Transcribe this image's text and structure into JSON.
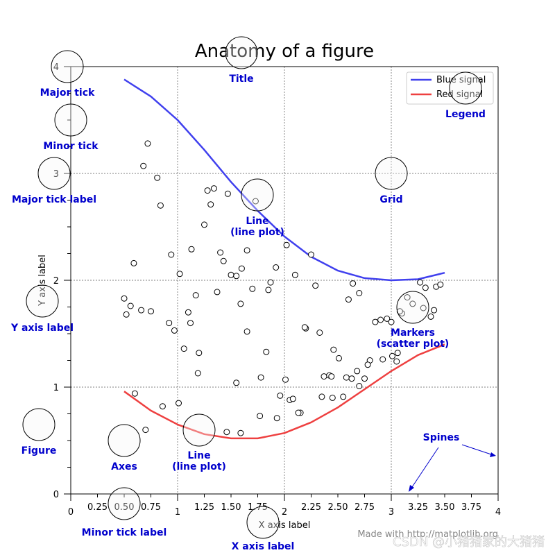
{
  "chart_data": {
    "type": "line",
    "title": "Anatomy of a figure",
    "xlabel": "X axis label",
    "ylabel": "Y axis label",
    "xlim": [
      0,
      4
    ],
    "ylim": [
      0,
      4
    ],
    "grid": true,
    "legend_placement": "upper-right",
    "x_major_ticks": [
      0,
      1,
      2,
      3,
      4
    ],
    "x_major_tick_labels": [
      "0",
      "1",
      "2",
      "3",
      "4"
    ],
    "x_minor_ticks": [
      0.25,
      0.5,
      0.75,
      1.25,
      1.5,
      1.75,
      2.25,
      2.5,
      2.75,
      3.25,
      3.5,
      3.75
    ],
    "x_minor_tick_labels": [
      "0.25",
      "0.50",
      "0.75",
      "1.25",
      "1.50",
      "1.75",
      "2.25",
      "2.50",
      "2.75",
      "3.25",
      "3.50",
      "3.75"
    ],
    "y_major_ticks": [
      0,
      1,
      2,
      3,
      4
    ],
    "y_major_tick_labels": [
      "0",
      "1",
      "2",
      "3",
      "4"
    ],
    "y_minor_ticks": [
      0.25,
      0.5,
      0.75,
      1.25,
      1.5,
      1.75,
      2.25,
      2.5,
      2.75,
      3.25,
      3.5,
      3.75
    ],
    "series": [
      {
        "name": "Blue signal",
        "color": "#4040ee",
        "x": [
          0.5,
          0.75,
          1.0,
          1.25,
          1.5,
          1.75,
          2.0,
          2.25,
          2.5,
          2.75,
          3.0,
          3.25,
          3.5
        ],
        "y": [
          3.88,
          3.72,
          3.5,
          3.22,
          2.92,
          2.65,
          2.41,
          2.22,
          2.09,
          2.02,
          2.0,
          2.01,
          2.07
        ]
      },
      {
        "name": "Red signal",
        "color": "#ee4040",
        "x": [
          0.5,
          0.75,
          1.0,
          1.25,
          1.5,
          1.75,
          2.0,
          2.25,
          2.5,
          2.75,
          3.0,
          3.25,
          3.5
        ],
        "y": [
          0.96,
          0.78,
          0.65,
          0.56,
          0.52,
          0.52,
          0.57,
          0.67,
          0.81,
          0.98,
          1.15,
          1.3,
          1.4
        ]
      }
    ],
    "scatter": {
      "name": "Markers",
      "x": [
        0.72,
        0.68,
        0.81,
        0.84,
        0.59,
        0.5,
        0.56,
        0.52,
        0.66,
        0.75,
        0.92,
        0.97,
        0.94,
        1.02,
        1.06,
        1.1,
        1.13,
        1.17,
        1.2,
        1.25,
        1.28,
        1.31,
        1.34,
        1.37,
        1.4,
        1.43,
        1.47,
        1.5,
        1.55,
        1.6,
        1.65,
        1.7,
        1.73,
        1.78,
        1.83,
        1.87,
        1.92,
        1.96,
        2.02,
        2.05,
        2.1,
        2.15,
        2.2,
        2.25,
        2.29,
        2.33,
        2.37,
        2.42,
        2.46,
        2.51,
        2.55,
        2.6,
        2.64,
        2.7,
        2.75,
        2.8,
        2.85,
        2.9,
        2.96,
        3.01,
        3.05,
        3.1,
        3.15,
        3.2,
        3.27,
        3.32,
        3.37,
        3.42,
        3.46,
        0.6,
        0.7,
        0.86,
        1.01,
        1.19,
        1.46,
        1.59,
        1.77,
        1.93,
        2.01,
        2.08,
        2.13,
        2.35,
        2.45,
        2.58,
        2.68,
        2.78,
        2.92,
        3.08,
        3.3,
        1.12,
        1.59,
        2.19,
        2.44,
        2.63,
        3.0,
        3.4,
        1.55,
        1.85,
        1.65,
        2.7,
        3.06
      ],
      "y": [
        3.28,
        3.07,
        2.96,
        2.7,
        2.16,
        1.83,
        1.76,
        1.68,
        1.72,
        1.71,
        1.6,
        1.53,
        2.24,
        2.06,
        1.36,
        1.7,
        2.29,
        1.86,
        1.32,
        2.52,
        2.84,
        2.71,
        2.86,
        1.89,
        2.26,
        2.18,
        2.81,
        2.05,
        1.04,
        2.11,
        1.52,
        1.92,
        2.74,
        1.09,
        1.33,
        1.98,
        2.12,
        0.92,
        2.33,
        0.88,
        2.05,
        0.76,
        1.55,
        2.24,
        1.95,
        1.51,
        1.1,
        1.11,
        1.35,
        1.27,
        0.91,
        1.82,
        1.97,
        1.01,
        1.08,
        1.25,
        1.61,
        1.63,
        1.64,
        1.29,
        1.24,
        1.69,
        1.84,
        1.78,
        1.98,
        1.93,
        1.66,
        1.94,
        1.96,
        0.94,
        0.6,
        0.82,
        0.85,
        1.13,
        0.58,
        0.57,
        0.73,
        0.71,
        1.07,
        0.89,
        0.76,
        0.91,
        0.9,
        1.09,
        1.15,
        1.21,
        1.26,
        1.71,
        1.74,
        1.6,
        1.78,
        1.56,
        1.1,
        1.08,
        1.61,
        1.72,
        2.04,
        1.91,
        2.28,
        1.88,
        1.32
      ]
    }
  },
  "annotations": {
    "major_tick": "Major tick",
    "minor_tick": "Minor tick",
    "major_tick_label": "Major tick label",
    "title": "Title",
    "legend": "Legend",
    "grid": "Grid",
    "line_plot_1": "Line",
    "line_plot_1_sub": "(line plot)",
    "markers": "Markers",
    "markers_sub": "(scatter plot)",
    "y_axis_label": "Y axis label",
    "figure": "Figure",
    "axes": "Axes",
    "line_plot_2": "Line",
    "line_plot_2_sub": "(line plot)",
    "spines": "Spines",
    "minor_tick_label": "Minor tick label",
    "x_axis_label": "X axis label"
  },
  "credit": "Made with http://matplotlib.org",
  "watermark": "CSDN @小猪猪家的大猪猪",
  "colors": {
    "annotation": "#0000cc",
    "circle_fill": "#f5f5f5",
    "grid": "#555555"
  }
}
